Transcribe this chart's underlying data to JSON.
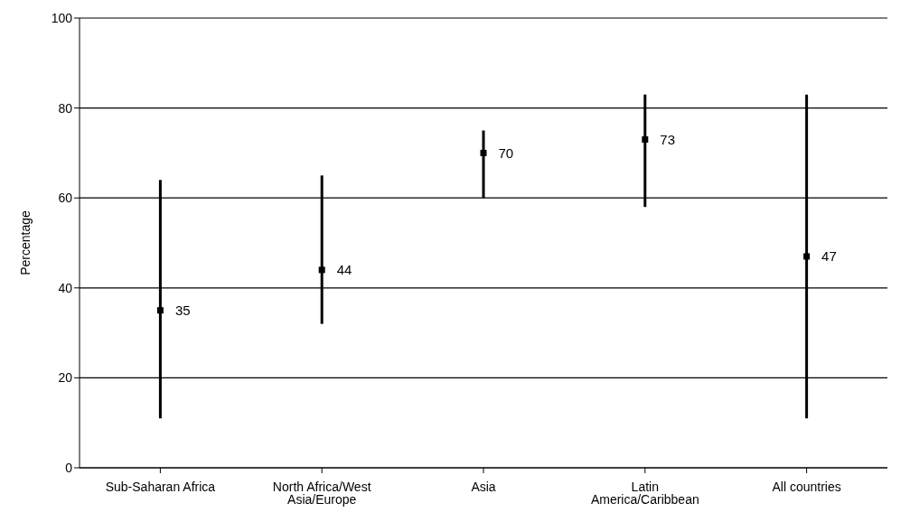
{
  "chart_data": {
    "type": "scatter",
    "ylabel": "Percentage",
    "categories": [
      "Sub-Saharan Africa",
      "North Africa/West Asia/Europe",
      "Asia",
      "Latin America/Caribbean",
      "All countries"
    ],
    "values": [
      35,
      44,
      70,
      73,
      47
    ],
    "errors": [
      [
        11,
        64
      ],
      [
        32,
        65
      ],
      [
        60,
        75
      ],
      [
        58,
        83
      ],
      [
        11,
        83
      ]
    ],
    "color": "#000000",
    "marker": "square",
    "data_labels": true,
    "ylim": [
      0,
      100
    ],
    "yticks": [
      0,
      20,
      40,
      60,
      80,
      100
    ],
    "grid": "y"
  }
}
